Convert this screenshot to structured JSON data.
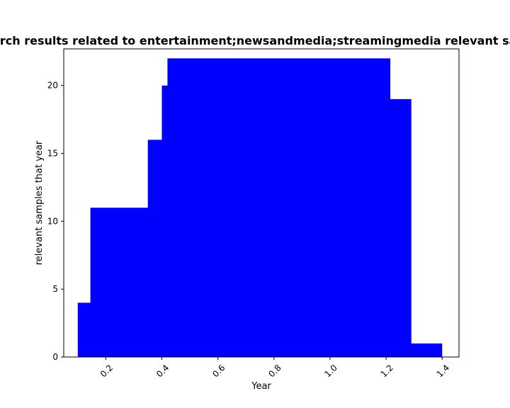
{
  "chart_data": {
    "type": "area",
    "title": "Fraction of search results related to entertainment;newsandmedia;streamingmedia relevant samples that year",
    "xlabel": "Year",
    "ylabel": "relevant samples that year",
    "xlim": [
      0.05,
      1.46
    ],
    "ylim": [
      0,
      22.7
    ],
    "x_ticks": [
      "0.2",
      "0.4",
      "0.6",
      "0.8",
      "1.0",
      "1.2",
      "1.4"
    ],
    "y_ticks": [
      "0",
      "5",
      "10",
      "15",
      "20"
    ],
    "color": "#0000ff",
    "step_where": "post",
    "steps": [
      {
        "x": 0.1,
        "y": 4
      },
      {
        "x": 0.145,
        "y": 11
      },
      {
        "x": 0.35,
        "y": 16
      },
      {
        "x": 0.4,
        "y": 20
      },
      {
        "x": 0.42,
        "y": 22
      },
      {
        "x": 1.215,
        "y": 19
      },
      {
        "x": 1.29,
        "y": 1
      },
      {
        "x": 1.4,
        "y": 1
      }
    ]
  }
}
